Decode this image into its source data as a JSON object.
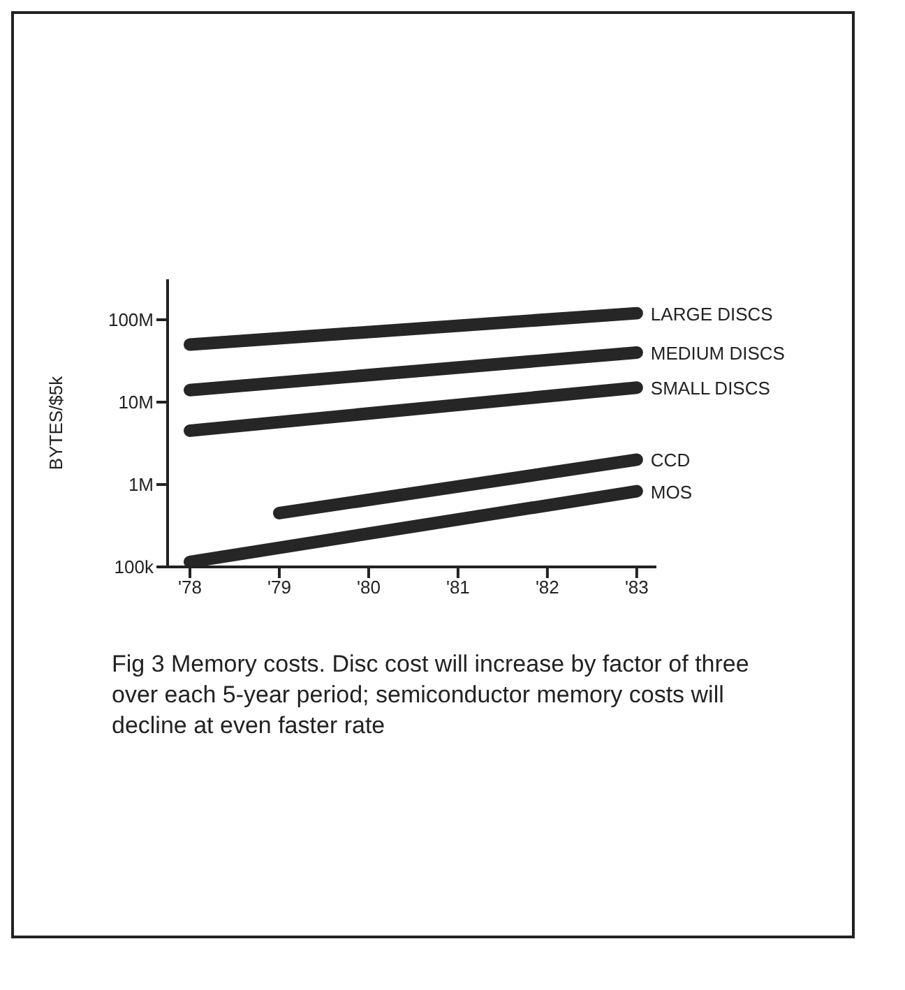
{
  "chart_data": {
    "type": "line",
    "ylabel": "BYTES/$5k",
    "log": "y",
    "x": [
      1978,
      1983
    ],
    "xlim": [
      1977.75,
      1983.22
    ],
    "xticks": [
      {
        "value": 1978,
        "label": "'78"
      },
      {
        "value": 1979,
        "label": "'79"
      },
      {
        "value": 1980,
        "label": "'80"
      },
      {
        "value": 1981,
        "label": "'81"
      },
      {
        "value": 1982,
        "label": "'82"
      },
      {
        "value": 1983,
        "label": "'83"
      }
    ],
    "ylim": [
      100000,
      310000000
    ],
    "yticks": [
      {
        "value": 100000,
        "label": "100k"
      },
      {
        "value": 1000000,
        "label": "1M"
      },
      {
        "value": 10000000,
        "label": "10M"
      },
      {
        "value": 100000000,
        "label": "100M"
      }
    ],
    "series": [
      {
        "name": "LARGE DISCS",
        "color": "#262626",
        "values": [
          50000000,
          120000000
        ]
      },
      {
        "name": "MEDIUM DISCS",
        "color": "#262626",
        "values": [
          14000000,
          40000000
        ]
      },
      {
        "name": "SMALL DISCS",
        "color": "#262626",
        "values": [
          4500000,
          15000000
        ]
      },
      {
        "name": "CCD",
        "color": "#262626",
        "x": [
          1979,
          1983
        ],
        "values": [
          450000,
          2000000
        ]
      },
      {
        "name": "MOS",
        "color": "#262626",
        "values": [
          115000,
          830000
        ]
      }
    ],
    "grid": false,
    "legend": false,
    "marker": "none",
    "line_style": "solid",
    "annotations": [
      "Fig 3   Memory costs. Disc cost will increase by factor of three over each 5-year period; semiconductor memory costs will decline at even faster rate"
    ]
  }
}
